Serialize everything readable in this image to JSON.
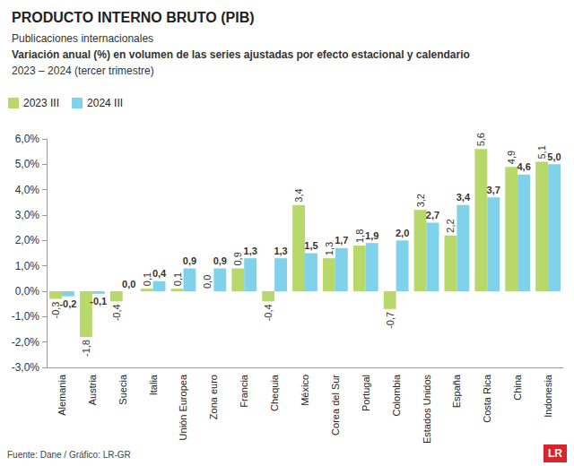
{
  "chart_data": {
    "type": "bar",
    "title": "PRODUCTO INTERNO BRUTO (PIB)",
    "subtitle": [
      "Publicaciones internacionales",
      "Variación anual (%) en volumen de las series ajustadas por efecto estacional y calendario",
      "2023 – 2024 (tercer trimestre)"
    ],
    "source": "Fuente: Dane / Gráfico: LR-GR",
    "logo": "LR",
    "categories": [
      "Alemania",
      "Austria",
      "Suecia",
      "Italia",
      "Unión Europea",
      "Zona euro",
      "Francia",
      "Chequia",
      "México",
      "Corea del Sur",
      "Portugal",
      "Colombia",
      "Estados Unidos",
      "España",
      "Costa Rica",
      "China",
      "Indonesia"
    ],
    "series": [
      {
        "name": "2023 III",
        "color": "#b8d86b",
        "values": [
          -0.3,
          -1.8,
          -0.4,
          0.1,
          0.1,
          0.0,
          0.9,
          -0.4,
          3.4,
          1.3,
          1.8,
          -0.7,
          3.2,
          2.2,
          5.6,
          4.9,
          5.1
        ],
        "value_labels": [
          "-0,3",
          "-1,8",
          "-0,4",
          "0,1",
          "0,1",
          "0,0",
          "0,9",
          "-0,4",
          "3,4",
          "1,3",
          "1,8",
          "-0,7",
          "3,2",
          "2,2",
          "5,6",
          "4,9",
          "5,1"
        ]
      },
      {
        "name": "2024 III",
        "color": "#7fd2ea",
        "values": [
          -0.2,
          -0.1,
          0.0,
          0.4,
          0.9,
          0.9,
          1.3,
          1.3,
          1.5,
          1.7,
          1.9,
          2.0,
          2.7,
          3.4,
          3.7,
          4.6,
          5.0
        ],
        "value_labels": [
          "-0,2",
          "-0,1",
          "0,0",
          "0,4",
          "0,9",
          "0,9",
          "1,3",
          "1,3",
          "1,5",
          "1,7",
          "1,9",
          "2,0",
          "2,7",
          "3,4",
          "3,7",
          "4,6",
          "5,0"
        ]
      }
    ],
    "ylim": [
      -3,
      6
    ],
    "yticks": [
      {
        "value": -3,
        "label": "-3,0%"
      },
      {
        "value": -2,
        "label": "-2,0%"
      },
      {
        "value": -1,
        "label": "-1,0%"
      },
      {
        "value": 0,
        "label": "0,0%"
      },
      {
        "value": 1,
        "label": "1,0%"
      },
      {
        "value": 2,
        "label": "2,0%"
      },
      {
        "value": 3,
        "label": "3,0%"
      },
      {
        "value": 4,
        "label": "4,0%"
      },
      {
        "value": 5,
        "label": "5,0%"
      },
      {
        "value": 6,
        "label": "6,0%"
      }
    ],
    "grid": false,
    "legend": "top-left",
    "data_labels": true
  }
}
